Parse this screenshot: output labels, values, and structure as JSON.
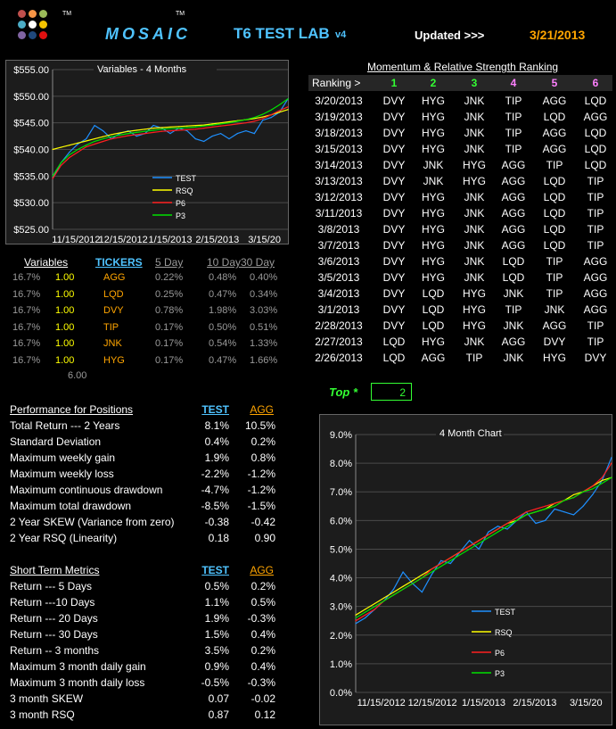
{
  "header": {
    "logo_dot_colors": [
      "#c0504d",
      "#f79646",
      "#9bbb59",
      "#4bacc6",
      "#ffffff",
      "#f4c300",
      "#8064a2",
      "#1f497d",
      "#e01010"
    ],
    "tm1": "TM",
    "brand": "MOSAIC",
    "tm2": "TM",
    "lab": "T6  TEST LAB",
    "version": "v4",
    "updated_label": "Updated >>>",
    "updated_date": "3/21/2013"
  },
  "chart_data": [
    {
      "type": "line",
      "title": "Variables - 4 Months",
      "x_tick_labels": [
        "11/15/2012",
        "12/15/2012",
        "1/15/2013",
        "2/15/2013",
        "3/15/20"
      ],
      "y_tick_labels": [
        "$525.00",
        "$530.00",
        "$535.00",
        "$540.00",
        "$545.00",
        "$550.00",
        "$555.00"
      ],
      "ylim": [
        525,
        555
      ],
      "grid": true,
      "legend_position": "inside-bottom-center",
      "series": [
        {
          "name": "TEST",
          "color": "#1e90ff",
          "values": [
            534.5,
            537.5,
            539.5,
            541,
            542,
            544.5,
            543.5,
            542,
            543,
            543.5,
            542.5,
            543,
            544.5,
            544,
            543,
            544,
            543.5,
            542,
            541.5,
            542.5,
            543,
            542,
            543,
            543.5,
            543,
            545.5,
            546,
            547,
            549.5
          ]
        },
        {
          "name": "RSQ",
          "color": "#ffff00",
          "values": [
            540,
            540.4,
            540.8,
            541.2,
            541.6,
            542,
            542.4,
            542.8,
            543.1,
            543.4,
            543.6,
            543.8,
            544,
            544.1,
            544.2,
            544.3,
            544.4,
            544.5,
            544.6,
            544.8,
            545,
            545.2,
            545.4,
            545.6,
            545.8,
            546.1,
            546.5,
            547,
            547.5
          ]
        },
        {
          "name": "P6",
          "color": "#ff2020",
          "values": [
            534.5,
            537,
            538.5,
            539.5,
            540.5,
            541,
            541.5,
            542,
            542.3,
            542.6,
            542.8,
            543,
            543.2,
            543.4,
            543.5,
            543.6,
            543.7,
            543.8,
            544,
            544.2,
            544.4,
            544.6,
            544.8,
            545,
            545.3,
            545.8,
            546.5,
            547.3,
            548
          ]
        },
        {
          "name": "P3",
          "color": "#00e000",
          "values": [
            535,
            537.5,
            539,
            540,
            540.8,
            541.5,
            542,
            542.4,
            542.7,
            543,
            543.2,
            543.4,
            543.6,
            543.8,
            543.9,
            544,
            544.1,
            544.2,
            544.4,
            544.6,
            544.8,
            545,
            545.3,
            545.6,
            546,
            546.6,
            547.4,
            548.4,
            549.5
          ]
        }
      ]
    },
    {
      "type": "line",
      "title": "4 Month Chart",
      "x_tick_labels": [
        "11/15/2012",
        "12/15/2012",
        "1/15/2013",
        "2/15/2013",
        "3/15/20"
      ],
      "y_tick_labels": [
        "0.0%",
        "1.0%",
        "2.0%",
        "3.0%",
        "4.0%",
        "5.0%",
        "6.0%",
        "7.0%",
        "8.0%",
        "9.0%"
      ],
      "ylim": [
        0,
        9
      ],
      "grid": true,
      "legend_position": "inside-bottom-center",
      "series": [
        {
          "name": "TEST",
          "color": "#1e90ff",
          "values": [
            2.4,
            2.6,
            2.9,
            3.2,
            3.6,
            4.2,
            3.8,
            3.5,
            4.1,
            4.6,
            4.5,
            4.9,
            5.3,
            5.0,
            5.6,
            5.8,
            5.7,
            6.0,
            6.3,
            5.9,
            6.0,
            6.4,
            6.3,
            6.2,
            6.5,
            6.9,
            7.4,
            8.2
          ]
        },
        {
          "name": "RSQ",
          "color": "#ffff00",
          "values": [
            2.7,
            2.9,
            3.1,
            3.3,
            3.5,
            3.7,
            3.9,
            4.1,
            4.3,
            4.5,
            4.7,
            4.9,
            5.1,
            5.3,
            5.5,
            5.7,
            5.9,
            6.0,
            6.2,
            6.3,
            6.4,
            6.6,
            6.7,
            6.9,
            7.0,
            7.2,
            7.4,
            7.5
          ]
        },
        {
          "name": "P6",
          "color": "#ff2020",
          "values": [
            2.5,
            2.7,
            2.9,
            3.2,
            3.4,
            3.6,
            3.8,
            4.0,
            4.3,
            4.5,
            4.7,
            4.9,
            5.1,
            5.3,
            5.5,
            5.7,
            5.9,
            6.1,
            6.3,
            6.4,
            6.5,
            6.6,
            6.7,
            6.8,
            7.0,
            7.2,
            7.5,
            8.0
          ]
        },
        {
          "name": "P3",
          "color": "#00e000",
          "values": [
            2.6,
            2.8,
            3.0,
            3.2,
            3.4,
            3.6,
            3.8,
            4.0,
            4.2,
            4.4,
            4.6,
            4.8,
            5.0,
            5.2,
            5.4,
            5.6,
            5.8,
            6.0,
            6.2,
            6.3,
            6.4,
            6.5,
            6.7,
            6.8,
            7.0,
            7.1,
            7.3,
            7.5
          ]
        }
      ]
    }
  ],
  "variables": {
    "headers": [
      "Variables",
      "TICKERS",
      "5 Day",
      "10 Day",
      "30 Day"
    ],
    "rows": [
      [
        "16.7%",
        "1.00",
        "AGG",
        "0.22%",
        "0.48%",
        "0.40%"
      ],
      [
        "16.7%",
        "1.00",
        "LQD",
        "0.25%",
        "0.47%",
        "0.34%"
      ],
      [
        "16.7%",
        "1.00",
        "DVY",
        "0.78%",
        "1.98%",
        "3.03%"
      ],
      [
        "16.7%",
        "1.00",
        "TIP",
        "0.17%",
        "0.50%",
        "0.51%"
      ],
      [
        "16.7%",
        "1.00",
        "JNK",
        "0.17%",
        "0.54%",
        "1.33%"
      ],
      [
        "16.7%",
        "1.00",
        "HYG",
        "0.17%",
        "0.47%",
        "1.66%"
      ]
    ],
    "total": "6.00"
  },
  "ranking": {
    "title": "Momentum & Relative Strength Ranking",
    "header_label": "Ranking >",
    "rank_numbers": [
      "1",
      "2",
      "3",
      "4",
      "5",
      "6"
    ],
    "rank_colors": [
      "#33ff33",
      "#33ff33",
      "#33ff33",
      "#ff80ff",
      "#ff80ff",
      "#ff80ff"
    ],
    "rows": [
      [
        "3/20/2013",
        "DVY",
        "HYG",
        "JNK",
        "TIP",
        "AGG",
        "LQD"
      ],
      [
        "3/19/2013",
        "DVY",
        "HYG",
        "JNK",
        "TIP",
        "LQD",
        "AGG"
      ],
      [
        "3/18/2013",
        "DVY",
        "HYG",
        "JNK",
        "TIP",
        "AGG",
        "LQD"
      ],
      [
        "3/15/2013",
        "DVY",
        "HYG",
        "JNK",
        "TIP",
        "AGG",
        "LQD"
      ],
      [
        "3/14/2013",
        "DVY",
        "JNK",
        "HYG",
        "AGG",
        "TIP",
        "LQD"
      ],
      [
        "3/13/2013",
        "DVY",
        "JNK",
        "HYG",
        "AGG",
        "LQD",
        "TIP"
      ],
      [
        "3/12/2013",
        "DVY",
        "HYG",
        "JNK",
        "AGG",
        "LQD",
        "TIP"
      ],
      [
        "3/11/2013",
        "DVY",
        "HYG",
        "JNK",
        "AGG",
        "LQD",
        "TIP"
      ],
      [
        "3/8/2013",
        "DVY",
        "HYG",
        "JNK",
        "AGG",
        "LQD",
        "TIP"
      ],
      [
        "3/7/2013",
        "DVY",
        "HYG",
        "JNK",
        "AGG",
        "LQD",
        "TIP"
      ],
      [
        "3/6/2013",
        "DVY",
        "HYG",
        "JNK",
        "LQD",
        "TIP",
        "AGG"
      ],
      [
        "3/5/2013",
        "DVY",
        "HYG",
        "JNK",
        "LQD",
        "TIP",
        "AGG"
      ],
      [
        "3/4/2013",
        "DVY",
        "LQD",
        "HYG",
        "JNK",
        "TIP",
        "AGG"
      ],
      [
        "3/1/2013",
        "DVY",
        "LQD",
        "HYG",
        "TIP",
        "JNK",
        "AGG"
      ],
      [
        "2/28/2013",
        "DVY",
        "LQD",
        "HYG",
        "JNK",
        "AGG",
        "TIP"
      ],
      [
        "2/27/2013",
        "LQD",
        "HYG",
        "JNK",
        "AGG",
        "DVY",
        "TIP"
      ],
      [
        "2/26/2013",
        "LQD",
        "AGG",
        "TIP",
        "JNK",
        "HYG",
        "DVY"
      ]
    ]
  },
  "top": {
    "label": "Top *",
    "value": "2"
  },
  "performance": {
    "title": "Performance for Positions",
    "col1": "TEST",
    "col2": "AGG",
    "rows": [
      [
        "Total Return --- 2 Years",
        "8.1%",
        "10.5%"
      ],
      [
        "Standard Deviation",
        "0.4%",
        "0.2%"
      ],
      [
        "Maximum weekly gain",
        "1.9%",
        "0.8%"
      ],
      [
        "Maximum weekly loss",
        "-2.2%",
        "-1.2%"
      ],
      [
        "Maximum continuous drawdown",
        "-4.7%",
        "-1.2%"
      ],
      [
        "Maximum total drawdown",
        "-8.5%",
        "-1.5%"
      ],
      [
        "2 Year SKEW  (Variance from zero)",
        "-0.38",
        "-0.42"
      ],
      [
        "2 Year RSQ  (Linearity)",
        "0.18",
        "0.90"
      ]
    ]
  },
  "short_term": {
    "title": "Short Term Metrics",
    "col1": "TEST",
    "col2": "AGG",
    "rows": [
      [
        "Return --- 5 Days",
        "0.5%",
        "0.2%"
      ],
      [
        "Return ---10 Days",
        "1.1%",
        "0.5%"
      ],
      [
        "Return --- 20 Days",
        "1.9%",
        "-0.3%"
      ],
      [
        "Return --- 30 Days",
        "1.5%",
        "0.4%"
      ],
      [
        "Return -- 3 months",
        "3.5%",
        "0.2%"
      ],
      [
        "Maximum 3 month daily gain",
        "0.9%",
        "0.4%"
      ],
      [
        "Maximum 3 month daily loss",
        "-0.5%",
        "-0.3%"
      ],
      [
        "3 month SKEW",
        "0.07",
        "-0.02"
      ],
      [
        "3 month RSQ",
        "0.87",
        "0.12"
      ]
    ]
  }
}
